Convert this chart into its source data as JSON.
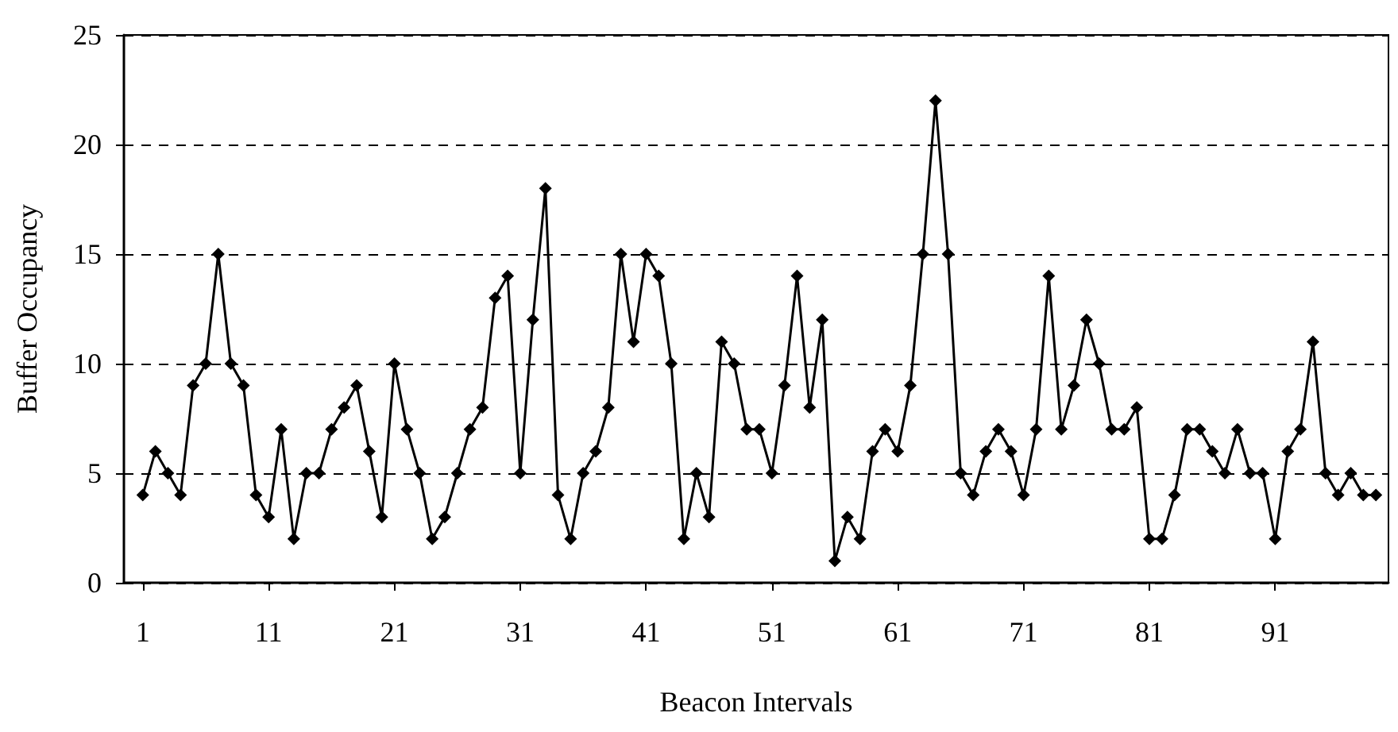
{
  "chart_data": {
    "type": "line",
    "xlabel": "Beacon Intervals",
    "ylabel": "Buffer Occupancy",
    "x": [
      1,
      2,
      3,
      4,
      5,
      6,
      7,
      8,
      9,
      10,
      11,
      12,
      13,
      14,
      15,
      16,
      17,
      18,
      19,
      20,
      21,
      22,
      23,
      24,
      25,
      26,
      27,
      28,
      29,
      30,
      31,
      32,
      33,
      34,
      35,
      36,
      37,
      38,
      39,
      40,
      41,
      42,
      43,
      44,
      45,
      46,
      47,
      48,
      49,
      50,
      51,
      52,
      53,
      54,
      55,
      56,
      57,
      58,
      59,
      60,
      61,
      62,
      63,
      64,
      65,
      66,
      67,
      68,
      69,
      70,
      71,
      72,
      73,
      74,
      75,
      76,
      77,
      78,
      79,
      80,
      81,
      82,
      83,
      84,
      85,
      86,
      87,
      88,
      89,
      90,
      91,
      92,
      93,
      94,
      95,
      96,
      97,
      98,
      99
    ],
    "series": [
      {
        "color": "#000000",
        "values": [
          4,
          6,
          5,
          4,
          9,
          10,
          15,
          10,
          9,
          4,
          3,
          7,
          2,
          5,
          5,
          7,
          8,
          9,
          6,
          3,
          10,
          7,
          5,
          2,
          3,
          5,
          7,
          8,
          13,
          14,
          5,
          12,
          18,
          4,
          2,
          5,
          6,
          8,
          15,
          11,
          15,
          14,
          10,
          2,
          5,
          3,
          11,
          10,
          7,
          7,
          5,
          9,
          14,
          8,
          12,
          1,
          3,
          2,
          6,
          7,
          6,
          9,
          15,
          22,
          15,
          5,
          4,
          6,
          7,
          6,
          4,
          7,
          14,
          7,
          9,
          12,
          10,
          7,
          7,
          8,
          2,
          2,
          4,
          7,
          7,
          6,
          5,
          7,
          5,
          5,
          2,
          6,
          7,
          11,
          5,
          4,
          5,
          4,
          4
        ]
      }
    ],
    "xlim": [
      -0.5,
      100
    ],
    "xticks": [
      1,
      11,
      21,
      31,
      41,
      51,
      61,
      71,
      81,
      91
    ],
    "ylim": [
      0,
      25
    ],
    "yticks": [
      0,
      5,
      10,
      15,
      20,
      25
    ],
    "grid": "y",
    "marker": "diamond",
    "line_style": "solid"
  }
}
